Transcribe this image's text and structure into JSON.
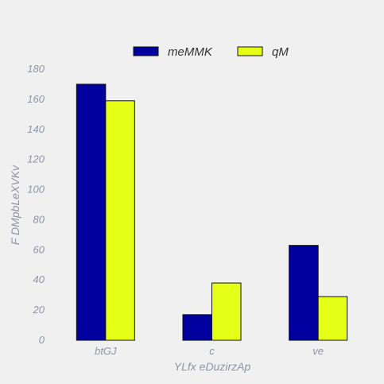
{
  "chart_data": {
    "type": "bar",
    "title": "",
    "xlabel": "YLfx eDuzirzAp",
    "ylabel": "F  DMpbLeXVKv",
    "categories": [
      "btGJ",
      "c",
      "ve"
    ],
    "series": [
      {
        "name": "meMMK",
        "values": [
          170,
          17,
          63
        ],
        "color": "#00009f"
      },
      {
        "name": "qM",
        "values": [
          159,
          38,
          29
        ],
        "color": "#e6ff17"
      }
    ],
    "ylim": [
      0,
      180
    ],
    "yticks": [
      0,
      20,
      40,
      60,
      80,
      100,
      120,
      140,
      160,
      180
    ],
    "grid": false,
    "legend_position": "top-center"
  }
}
